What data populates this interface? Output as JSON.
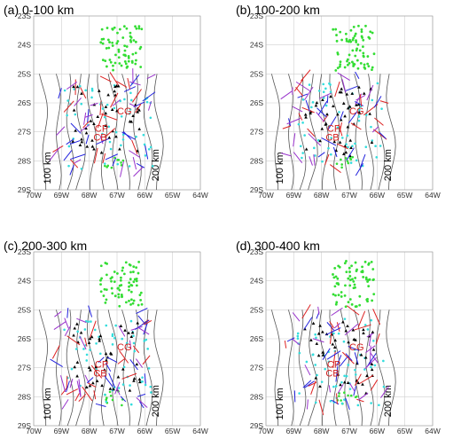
{
  "panels": [
    {
      "title": "(a) 0-100 km",
      "seed": 11
    },
    {
      "title": "(b) 100-200 km",
      "seed": 23
    },
    {
      "title": "(c) 200-300 km",
      "seed": 37
    },
    {
      "title": "(d) 300-400 km",
      "seed": 53
    }
  ],
  "axes": {
    "x_ticks": [
      "70W",
      "69W",
      "68W",
      "67W",
      "66W",
      "65W",
      "64W"
    ],
    "y_ticks": [
      "23S",
      "24S",
      "25S",
      "26S",
      "27S",
      "28S",
      "29S"
    ]
  },
  "contour_labels": {
    "left": "100 km",
    "right": "200 km"
  },
  "site_labels": [
    "CG",
    "CP",
    "CB"
  ],
  "colors": {
    "contour": "#555555",
    "green_dots": "#33dd33",
    "cyan_dots": "#33dddd",
    "stations": "#000000",
    "split_blue": "#2222dd",
    "split_red": "#dd2222",
    "split_purple": "#9933cc",
    "site_label": "#d21f1f",
    "grid": "#cfcfcf"
  }
}
